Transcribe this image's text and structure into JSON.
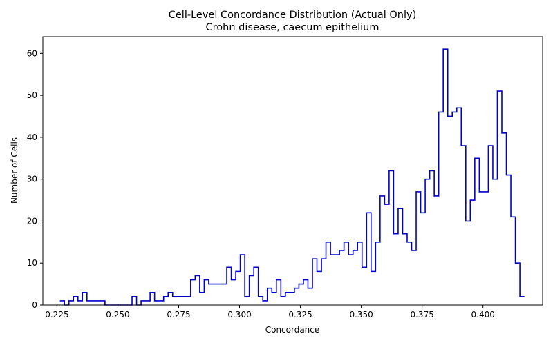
{
  "chart_data": {
    "type": "histogram-step",
    "title": "Cell-Level Concordance Distribution (Actual Only)",
    "subtitle": "Crohn disease, caecum epithelium",
    "xlabel": "Concordance",
    "ylabel": "Number of Cells",
    "xlim": [
      0.2192,
      0.4245
    ],
    "ylim": [
      0,
      64
    ],
    "xticks": [
      0.225,
      0.25,
      0.275,
      0.3,
      0.325,
      0.35,
      0.375,
      0.4
    ],
    "xtick_labels": [
      "0.225",
      "0.250",
      "0.275",
      "0.300",
      "0.325",
      "0.350",
      "0.375",
      "0.400"
    ],
    "yticks": [
      0,
      10,
      20,
      30,
      40,
      50,
      60
    ],
    "ytick_labels": [
      "0",
      "10",
      "20",
      "30",
      "40",
      "50",
      "60"
    ],
    "grid": false,
    "line_color": "#0000cc",
    "bin_start": 0.2262,
    "bin_width": 0.0018525,
    "counts": [
      1,
      0,
      1,
      2,
      1,
      3,
      1,
      1,
      1,
      1,
      0,
      0,
      0,
      0,
      0,
      0,
      2,
      0,
      1,
      1,
      3,
      1,
      1,
      2,
      3,
      2,
      2,
      2,
      2,
      6,
      7,
      3,
      6,
      5,
      5,
      5,
      5,
      9,
      6,
      8,
      12,
      2,
      7,
      9,
      2,
      1,
      4,
      3,
      6,
      2,
      3,
      3,
      4,
      5,
      6,
      4,
      11,
      8,
      11,
      15,
      12,
      12,
      13,
      15,
      12,
      13,
      15,
      9,
      22,
      8,
      15,
      26,
      24,
      32,
      17,
      23,
      17,
      15,
      13,
      27,
      22,
      30,
      32,
      26,
      46,
      61,
      45,
      46,
      47,
      38,
      20,
      25,
      35,
      27,
      27,
      38,
      30,
      51,
      41,
      31,
      21,
      10,
      2
    ]
  }
}
